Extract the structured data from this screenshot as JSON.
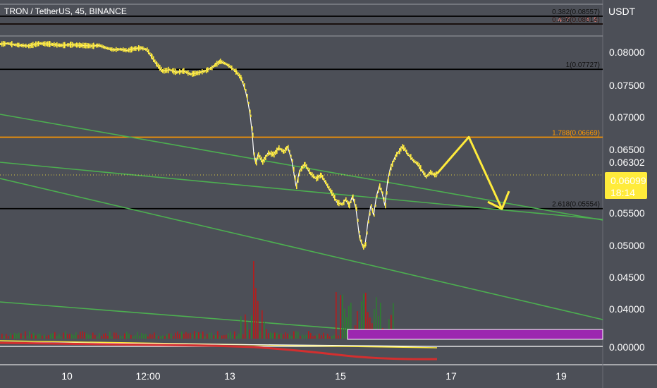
{
  "header": {
    "title": "TRON / TetherUS, 45, BINANCE",
    "unit": "USDT"
  },
  "price_axis": {
    "ticks": [
      "0.08000",
      "0.07500",
      "0.07000",
      "0.06500",
      "0.06302",
      "0.05500",
      "0.05000",
      "0.04500",
      "0.04000",
      "0.00000"
    ],
    "current_price": "0.06099",
    "countdown": "18:14",
    "current_price_color": "#ffeb3b"
  },
  "time_axis": {
    "ticks": [
      "10",
      "12:00",
      "13",
      "15",
      "17",
      "19"
    ]
  },
  "fib_levels": [
    {
      "label": "0.382(0.08557)",
      "value": 0.08557,
      "color": "#000000"
    },
    {
      "label": "0.487(0.08416)",
      "value": 0.08416,
      "color": "#ff8a80"
    },
    {
      "label": "0.786(0.08014)",
      "value": 0.08014,
      "color": "#000000"
    },
    {
      "label": "1(0.07727)",
      "value": 0.07727,
      "color": "#000000"
    },
    {
      "label": "1.788(0.06669)",
      "value": 0.06669,
      "color": "#ff9800"
    },
    {
      "label": "2.618(0.05554)",
      "value": 0.05554,
      "color": "#000000"
    }
  ],
  "chart_data": {
    "type": "line",
    "price_series": [
      [
        0,
        0.0812
      ],
      [
        10,
        0.0813
      ],
      [
        20,
        0.0811
      ],
      [
        30,
        0.081
      ],
      [
        40,
        0.0809
      ],
      [
        55,
        0.0813
      ],
      [
        70,
        0.0812
      ],
      [
        85,
        0.081
      ],
      [
        100,
        0.0811
      ],
      [
        115,
        0.081
      ],
      [
        130,
        0.0809
      ],
      [
        140,
        0.081
      ],
      [
        150,
        0.0806
      ],
      [
        160,
        0.0803
      ],
      [
        170,
        0.0804
      ],
      [
        180,
        0.0802
      ],
      [
        190,
        0.0805
      ],
      [
        200,
        0.0806
      ],
      [
        208,
        0.0803
      ],
      [
        215,
        0.0792
      ],
      [
        222,
        0.078
      ],
      [
        230,
        0.077
      ],
      [
        240,
        0.0772
      ],
      [
        250,
        0.0768
      ],
      [
        260,
        0.077
      ],
      [
        270,
        0.0765
      ],
      [
        280,
        0.0767
      ],
      [
        290,
        0.077
      ],
      [
        300,
        0.0775
      ],
      [
        305,
        0.078
      ],
      [
        312,
        0.0785
      ],
      [
        320,
        0.0781
      ],
      [
        328,
        0.0775
      ],
      [
        335,
        0.0768
      ],
      [
        342,
        0.0758
      ],
      [
        348,
        0.074
      ],
      [
        352,
        0.072
      ],
      [
        355,
        0.07
      ],
      [
        358,
        0.067
      ],
      [
        360,
        0.064
      ],
      [
        363,
        0.0625
      ],
      [
        366,
        0.064
      ],
      [
        372,
        0.0628
      ],
      [
        380,
        0.0642
      ],
      [
        388,
        0.064
      ],
      [
        395,
        0.065
      ],
      [
        402,
        0.0644
      ],
      [
        408,
        0.0652
      ],
      [
        414,
        0.063
      ],
      [
        420,
        0.059
      ],
      [
        425,
        0.0615
      ],
      [
        432,
        0.0625
      ],
      [
        440,
        0.061
      ],
      [
        448,
        0.0602
      ],
      [
        455,
        0.0608
      ],
      [
        462,
        0.0595
      ],
      [
        470,
        0.058
      ],
      [
        478,
        0.0565
      ],
      [
        485,
        0.0562
      ],
      [
        490,
        0.057
      ],
      [
        495,
        0.056
      ],
      [
        500,
        0.0575
      ],
      [
        505,
        0.0555
      ],
      [
        510,
        0.051
      ],
      [
        515,
        0.0495
      ],
      [
        518,
        0.05
      ],
      [
        522,
        0.0535
      ],
      [
        526,
        0.056
      ],
      [
        530,
        0.0545
      ],
      [
        534,
        0.0575
      ],
      [
        538,
        0.059
      ],
      [
        542,
        0.058
      ],
      [
        546,
        0.056
      ],
      [
        550,
        0.06
      ],
      [
        554,
        0.062
      ],
      [
        558,
        0.063
      ],
      [
        562,
        0.064
      ],
      [
        566,
        0.0645
      ],
      [
        570,
        0.0652
      ],
      [
        574,
        0.0648
      ],
      [
        578,
        0.064
      ],
      [
        582,
        0.0636
      ],
      [
        586,
        0.063
      ],
      [
        592,
        0.0625
      ],
      [
        598,
        0.0615
      ],
      [
        604,
        0.0605
      ],
      [
        610,
        0.0612
      ],
      [
        616,
        0.0608
      ],
      [
        620,
        0.061
      ]
    ],
    "projection": [
      [
        620,
        0.061
      ],
      [
        665,
        0.0667
      ],
      [
        712,
        0.0555
      ]
    ],
    "volume_series": [],
    "ylim": [
      0,
      0.0875
    ]
  }
}
